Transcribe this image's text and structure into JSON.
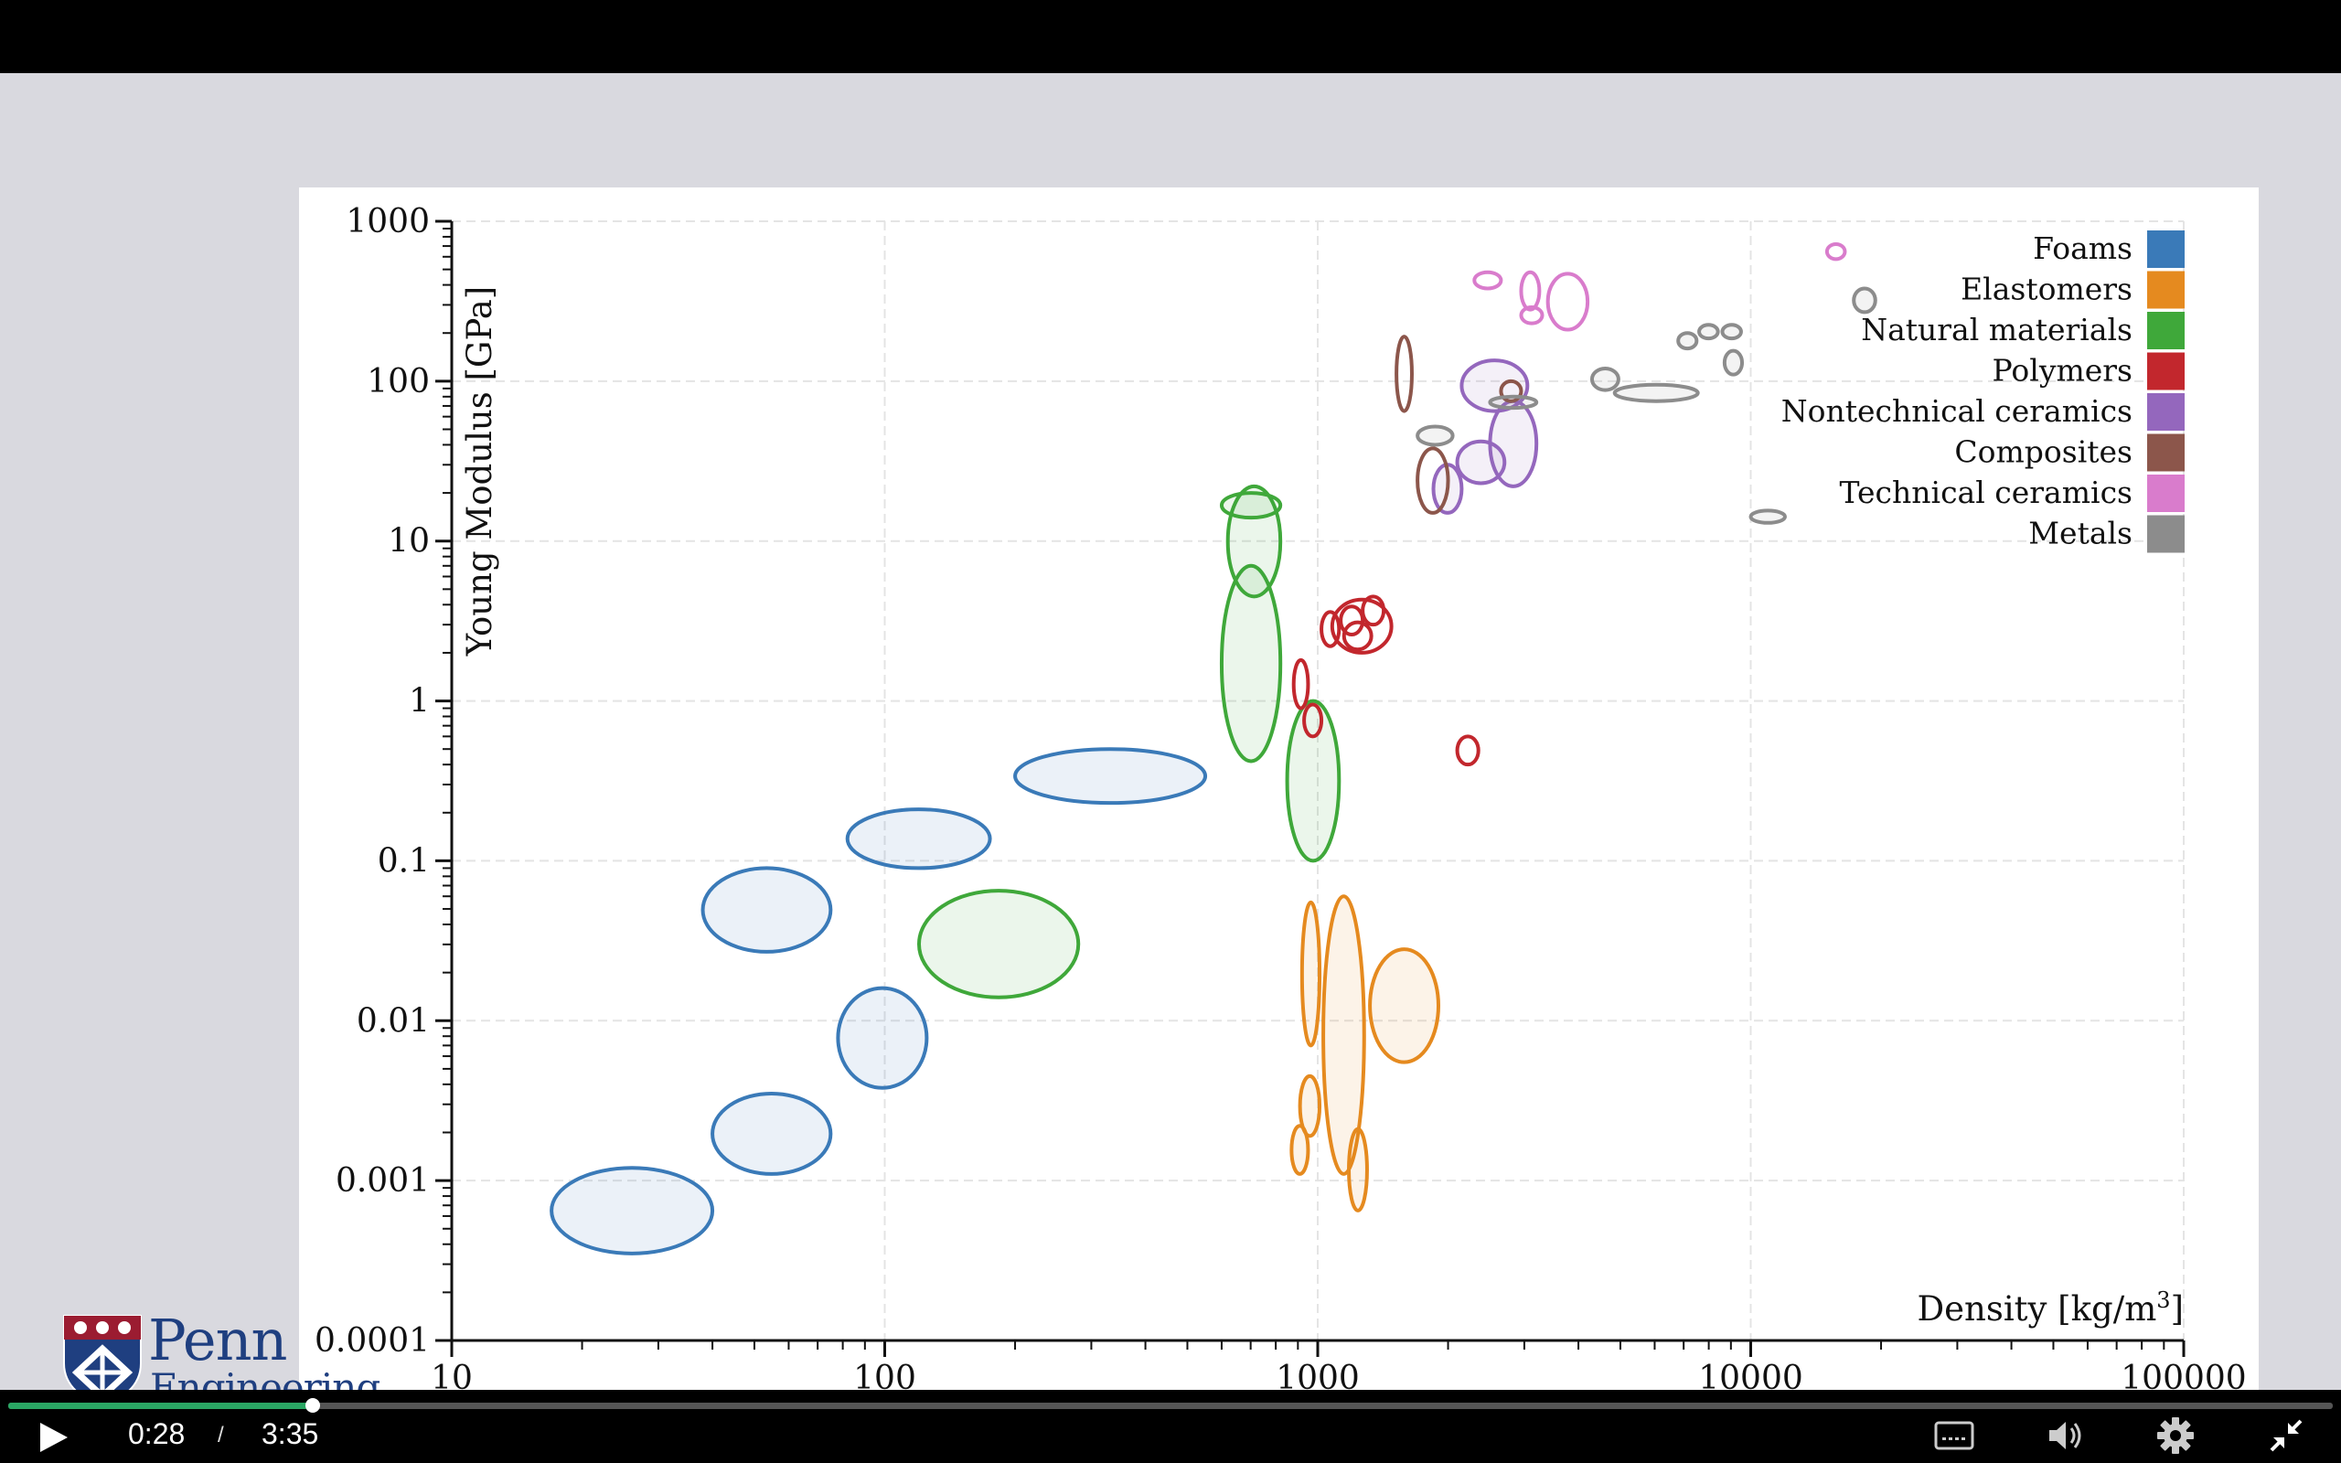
{
  "player": {
    "current_time": "0:28",
    "separator": "/",
    "total_time": "3:35",
    "progress_fraction": 0.131,
    "accent_color": "#2aa764"
  },
  "icons": [
    "play-icon",
    "captions-icon",
    "volume-icon",
    "settings-gear-icon",
    "exit-fullscreen-icon"
  ],
  "logo": {
    "main_text": "Penn",
    "sub_text": "Engineering"
  },
  "chart_data": {
    "type": "scatter",
    "title": "",
    "xlabel": "Density [kg/m³]",
    "ylabel": "Young Modulus [GPa]",
    "xscale": "log",
    "yscale": "log",
    "xlim": [
      10,
      100000
    ],
    "ylim": [
      0.0001,
      1000
    ],
    "x_ticks": [
      10,
      100,
      1000,
      10000,
      100000
    ],
    "x_tick_labels": [
      "10",
      "100",
      "1000",
      "10000",
      "100000"
    ],
    "y_ticks": [
      0.0001,
      0.001,
      0.01,
      0.1,
      1,
      10,
      100,
      1000
    ],
    "y_tick_labels": [
      "0.0001",
      "0.001",
      "0.01",
      "0.1",
      "1",
      "10",
      "100",
      "1000"
    ],
    "grid": true,
    "legend_position": "top-right",
    "series": [
      {
        "name": "Foams",
        "color": "#3a7ab8",
        "filled": true,
        "regions": [
          {
            "x": [
              17,
              40
            ],
            "y": [
              0.00035,
              0.0012
            ]
          },
          {
            "x": [
              40,
              75
            ],
            "y": [
              0.0011,
              0.0035
            ]
          },
          {
            "x": [
              78,
              125
            ],
            "y": [
              0.0038,
              0.016
            ]
          },
          {
            "x": [
              38,
              75
            ],
            "y": [
              0.027,
              0.09
            ]
          },
          {
            "x": [
              82,
              175
            ],
            "y": [
              0.09,
              0.21
            ]
          },
          {
            "x": [
              200,
              550
            ],
            "y": [
              0.23,
              0.5
            ]
          }
        ]
      },
      {
        "name": "Elastomers",
        "color": "#e58a1f",
        "filled": true,
        "regions": [
          {
            "x": [
              920,
              1010
            ],
            "y": [
              0.007,
              0.055
            ]
          },
          {
            "x": [
              1030,
              1280
            ],
            "y": [
              0.0011,
              0.06
            ]
          },
          {
            "x": [
              1320,
              1900
            ],
            "y": [
              0.0055,
              0.028
            ]
          },
          {
            "x": [
              910,
              1010
            ],
            "y": [
              0.0019,
              0.0045
            ]
          },
          {
            "x": [
              870,
              950
            ],
            "y": [
              0.0011,
              0.0022
            ]
          },
          {
            "x": [
              1180,
              1300
            ],
            "y": [
              0.00065,
              0.0021
            ]
          }
        ]
      },
      {
        "name": "Natural materials",
        "color": "#3fa83a",
        "filled": true,
        "regions": [
          {
            "x": [
              120,
              280
            ],
            "y": [
              0.014,
              0.065
            ]
          },
          {
            "x": [
              600,
              820
            ],
            "y": [
              0.42,
              7
            ]
          },
          {
            "x": [
              620,
              820
            ],
            "y": [
              4.5,
              22
            ]
          },
          {
            "x": [
              600,
              820
            ],
            "y": [
              14,
              20
            ]
          },
          {
            "x": [
              850,
              1120
            ],
            "y": [
              0.1,
              1
            ]
          }
        ]
      },
      {
        "name": "Polymers",
        "color": "#c2272d",
        "filled": false,
        "regions": [
          {
            "x": [
              1080,
              1480
            ],
            "y": [
              2,
              4.3
            ]
          },
          {
            "x": [
              1020,
              1120
            ],
            "y": [
              2.2,
              3.6
            ]
          },
          {
            "x": [
              1130,
              1270
            ],
            "y": [
              2.6,
              3.9
            ]
          },
          {
            "x": [
              1150,
              1330
            ],
            "y": [
              2.1,
              3.1
            ]
          },
          {
            "x": [
              1270,
              1420
            ],
            "y": [
              3,
              4.5
            ]
          },
          {
            "x": [
              880,
              950
            ],
            "y": [
              0.9,
              1.8
            ]
          },
          {
            "x": [
              930,
              1020
            ],
            "y": [
              0.6,
              0.95
            ]
          },
          {
            "x": [
              2100,
              2350
            ],
            "y": [
              0.4,
              0.6
            ]
          }
        ]
      },
      {
        "name": "Nontechnical ceramics",
        "color": "#9467bd",
        "filled": true,
        "regions": [
          {
            "x": [
              2150,
              3050
            ],
            "y": [
              65,
              135
            ]
          },
          {
            "x": [
              2500,
              3200
            ],
            "y": [
              22,
              75
            ]
          },
          {
            "x": [
              2100,
              2700
            ],
            "y": [
              23,
              42
            ]
          },
          {
            "x": [
              1850,
              2150
            ],
            "y": [
              15,
              30
            ]
          }
        ]
      },
      {
        "name": "Composites",
        "color": "#8c564b",
        "filled": false,
        "regions": [
          {
            "x": [
              1520,
              1650
            ],
            "y": [
              65,
              190
            ]
          },
          {
            "x": [
              1700,
              2000
            ],
            "y": [
              15,
              38
            ]
          },
          {
            "x": [
              2650,
              2950
            ],
            "y": [
              75,
              100
            ]
          }
        ]
      },
      {
        "name": "Technical ceramics",
        "color": "#d97ccc",
        "filled": false,
        "regions": [
          {
            "x": [
              2300,
              2650
            ],
            "y": [
              380,
              480
            ]
          },
          {
            "x": [
              2950,
              3250
            ],
            "y": [
              280,
              480
            ]
          },
          {
            "x": [
              2950,
              3300
            ],
            "y": [
              230,
              290
            ]
          },
          {
            "x": [
              3400,
              4200
            ],
            "y": [
              210,
              470
            ]
          },
          {
            "x": [
              15000,
              16500
            ],
            "y": [
              580,
              720
            ]
          }
        ]
      },
      {
        "name": "Metals",
        "color": "#8c8c8c",
        "filled": true,
        "regions": [
          {
            "x": [
              1700,
              2050
            ],
            "y": [
              40,
              52
            ]
          },
          {
            "x": [
              2500,
              3200
            ],
            "y": [
              68,
              80
            ]
          },
          {
            "x": [
              4300,
              4950
            ],
            "y": [
              88,
              120
            ]
          },
          {
            "x": [
              4850,
              7550
            ],
            "y": [
              75,
              95
            ]
          },
          {
            "x": [
              6800,
              7500
            ],
            "y": [
              160,
              200
            ]
          },
          {
            "x": [
              7600,
              8400
            ],
            "y": [
              185,
              225
            ]
          },
          {
            "x": [
              8600,
              9500
            ],
            "y": [
              185,
              225
            ]
          },
          {
            "x": [
              8700,
              9550
            ],
            "y": [
              110,
              155
            ]
          },
          {
            "x": [
              10000,
              12000
            ],
            "y": [
              13,
              15.5
            ]
          },
          {
            "x": [
              17300,
              19400
            ],
            "y": [
              270,
              380
            ]
          }
        ]
      }
    ]
  }
}
